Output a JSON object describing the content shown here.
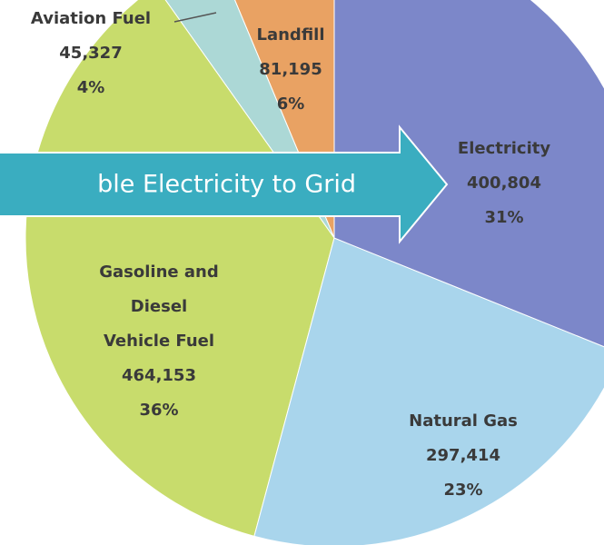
{
  "chart_data": {
    "type": "pie",
    "categories": [
      "Electricity",
      "Natural Gas",
      "Gasoline and\nDiesel\nVehicle Fuel",
      "Aviation Fuel",
      "Landfill"
    ],
    "values": [
      400804,
      297414,
      464153,
      45327,
      81195
    ],
    "value_labels": [
      "400,804",
      "297,414",
      "464,153",
      "45,327",
      "81,195"
    ],
    "percent_labels": [
      "31%",
      "23%",
      "36%",
      "4%",
      "6%"
    ],
    "colors": [
      "#7c87c9",
      "#a9d5ec",
      "#c8dc6c",
      "#acd8d6",
      "#e9a263"
    ],
    "annotation": "ble Electricity to Grid"
  }
}
